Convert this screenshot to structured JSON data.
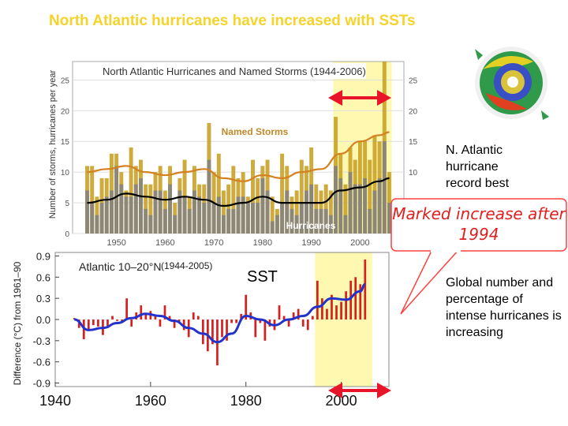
{
  "slide": {
    "title": "North Atlantic hurricanes have increased with SSTs",
    "sst_label": "SST",
    "record_note": "N. Atlantic hurricane record best",
    "callout": "Marked increase after 1994",
    "global_note": "Global number and percentage of intense hurricanes is increasing",
    "image_icon": "hurricane-radar-icon",
    "colors": {
      "title": "#f5d32a",
      "highlight": "#fff8b0",
      "arrow": "#e8152a",
      "callout_border": "#ff4040",
      "callout_text": "#e02020"
    }
  },
  "chart_data": [
    {
      "type": "bar",
      "title": "North Atlantic Hurricanes and Named Storms (1944-2006)",
      "ylabel": "Number of storms, hurricanes per year",
      "ylim": [
        0,
        28
      ],
      "xlim": [
        1941,
        2009
      ],
      "xticks": [
        1950,
        1960,
        1970,
        1980,
        1990,
        2000
      ],
      "yticks": [
        0,
        5,
        10,
        15,
        20,
        25
      ],
      "grid": true,
      "highlight_range": [
        1995,
        2006
      ],
      "series": [
        {
          "name": "Named Storms",
          "color": "#c9a227",
          "x": [
            1944,
            1945,
            1946,
            1947,
            1948,
            1949,
            1950,
            1951,
            1952,
            1953,
            1954,
            1955,
            1956,
            1957,
            1958,
            1959,
            1960,
            1961,
            1962,
            1963,
            1964,
            1965,
            1966,
            1967,
            1968,
            1969,
            1970,
            1971,
            1972,
            1973,
            1974,
            1975,
            1976,
            1977,
            1978,
            1979,
            1980,
            1981,
            1982,
            1983,
            1984,
            1985,
            1986,
            1987,
            1988,
            1989,
            1990,
            1991,
            1992,
            1993,
            1994,
            1995,
            1996,
            1997,
            1998,
            1999,
            2000,
            2001,
            2002,
            2003,
            2004,
            2005,
            2006
          ],
          "values": [
            11,
            11,
            6,
            9,
            9,
            13,
            13,
            10,
            7,
            14,
            11,
            12,
            8,
            8,
            10,
            11,
            7,
            11,
            5,
            9,
            12,
            6,
            11,
            8,
            8,
            18,
            10,
            13,
            7,
            8,
            11,
            9,
            10,
            6,
            12,
            9,
            11,
            12,
            6,
            4,
            13,
            11,
            6,
            7,
            12,
            11,
            14,
            8,
            7,
            8,
            7,
            19,
            13,
            8,
            14,
            12,
            15,
            15,
            12,
            16,
            15,
            28,
            10
          ]
        },
        {
          "name": "Hurricanes",
          "color": "#808080",
          "x": [
            1944,
            1945,
            1946,
            1947,
            1948,
            1949,
            1950,
            1951,
            1952,
            1953,
            1954,
            1955,
            1956,
            1957,
            1958,
            1959,
            1960,
            1961,
            1962,
            1963,
            1964,
            1965,
            1966,
            1967,
            1968,
            1969,
            1970,
            1971,
            1972,
            1973,
            1974,
            1975,
            1976,
            1977,
            1978,
            1979,
            1980,
            1981,
            1982,
            1983,
            1984,
            1985,
            1986,
            1987,
            1988,
            1989,
            1990,
            1991,
            1992,
            1993,
            1994,
            1995,
            1996,
            1997,
            1998,
            1999,
            2000,
            2001,
            2002,
            2003,
            2004,
            2005,
            2006
          ],
          "values": [
            7,
            5,
            3,
            5,
            6,
            7,
            11,
            8,
            6,
            6,
            8,
            9,
            4,
            3,
            7,
            7,
            4,
            8,
            3,
            7,
            6,
            4,
            7,
            6,
            5,
            12,
            5,
            6,
            3,
            4,
            4,
            6,
            6,
            5,
            5,
            5,
            9,
            7,
            2,
            3,
            5,
            7,
            4,
            3,
            5,
            7,
            8,
            4,
            4,
            4,
            3,
            11,
            9,
            3,
            10,
            8,
            8,
            9,
            4,
            7,
            9,
            15,
            5
          ]
        },
        {
          "name": "",
          "style": "smoothed",
          "color": "#d4811f",
          "x": [
            1944,
            1948,
            1952,
            1956,
            1960,
            1964,
            1968,
            1972,
            1976,
            1980,
            1984,
            1988,
            1992,
            1996,
            2000,
            2004,
            2006
          ],
          "values": [
            10,
            10.5,
            11,
            10,
            9.5,
            10,
            10.5,
            9,
            8.5,
            9.5,
            9,
            10,
            10.5,
            13,
            15,
            16,
            16.5
          ]
        },
        {
          "name": "",
          "style": "smoothed",
          "color": "#000000",
          "x": [
            1944,
            1948,
            1952,
            1956,
            1960,
            1964,
            1968,
            1972,
            1976,
            1980,
            1984,
            1988,
            1992,
            1996,
            2000,
            2004,
            2006
          ],
          "values": [
            5,
            5.5,
            6.5,
            6,
            5.5,
            6,
            5.5,
            4.5,
            5,
            6,
            5,
            5,
            5,
            7,
            7.5,
            8.5,
            9
          ]
        }
      ]
    },
    {
      "type": "bar",
      "title": "Atlantic 10–20°N",
      "period_label": "(1944-2005)",
      "ylabel": "Difference (°C) from 1961–90",
      "ylim": [
        -0.95,
        0.95
      ],
      "xlim": [
        1940,
        2010
      ],
      "xticks": [
        1940,
        1960,
        1980,
        2000
      ],
      "yticks": [
        -0.9,
        -0.6,
        -0.3,
        0.0,
        0.3,
        0.6,
        0.9
      ],
      "highlight_range": [
        1995,
        2006
      ],
      "series": [
        {
          "name": "",
          "color": "#d62020",
          "x": [
            1944,
            1945,
            1946,
            1947,
            1948,
            1949,
            1950,
            1951,
            1952,
            1953,
            1954,
            1955,
            1956,
            1957,
            1958,
            1959,
            1960,
            1961,
            1962,
            1963,
            1964,
            1965,
            1966,
            1967,
            1968,
            1969,
            1970,
            1971,
            1972,
            1973,
            1974,
            1975,
            1976,
            1977,
            1978,
            1979,
            1980,
            1981,
            1982,
            1983,
            1984,
            1985,
            1986,
            1987,
            1988,
            1989,
            1990,
            1991,
            1992,
            1993,
            1994,
            1995,
            1996,
            1997,
            1998,
            1999,
            2000,
            2001,
            2002,
            2003,
            2004,
            2005
          ],
          "values": [
            0.02,
            -0.12,
            -0.28,
            -0.15,
            -0.08,
            -0.1,
            -0.22,
            -0.12,
            0.05,
            -0.02,
            -0.05,
            0.3,
            -0.1,
            0.1,
            0.2,
            0.08,
            0.12,
            0.05,
            -0.1,
            0.2,
            0.05,
            -0.12,
            -0.05,
            -0.15,
            -0.25,
            0.1,
            0.05,
            -0.35,
            -0.45,
            -0.35,
            -0.65,
            -0.25,
            -0.3,
            -0.05,
            -0.05,
            0.08,
            0.35,
            0.1,
            -0.25,
            -0.05,
            -0.3,
            -0.1,
            -0.15,
            0.2,
            0.05,
            -0.1,
            0.1,
            0.15,
            -0.1,
            -0.15,
            0.05,
            0.55,
            0.3,
            0.15,
            0.35,
            0.2,
            0.25,
            0.4,
            0.55,
            0.6,
            0.5,
            0.85
          ]
        },
        {
          "name": "",
          "style": "smoothed",
          "color": "#2233cc",
          "x": [
            1944,
            1947,
            1950,
            1953,
            1956,
            1959,
            1962,
            1965,
            1968,
            1971,
            1974,
            1977,
            1980,
            1983,
            1986,
            1989,
            1992,
            1995,
            1998,
            2001,
            2004,
            2005
          ],
          "values": [
            0.0,
            -0.15,
            -0.12,
            -0.05,
            0.02,
            0.08,
            0.05,
            -0.02,
            -0.12,
            -0.2,
            -0.32,
            -0.2,
            0.05,
            0.0,
            -0.08,
            0.0,
            0.05,
            0.18,
            0.3,
            0.28,
            0.4,
            0.5
          ]
        }
      ]
    }
  ]
}
